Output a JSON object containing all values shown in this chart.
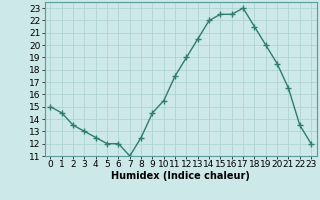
{
  "x": [
    0,
    1,
    2,
    3,
    4,
    5,
    6,
    7,
    8,
    9,
    10,
    11,
    12,
    13,
    14,
    15,
    16,
    17,
    18,
    19,
    20,
    21,
    22,
    23
  ],
  "y": [
    15,
    14.5,
    13.5,
    13,
    12.5,
    12,
    12,
    11,
    12.5,
    14.5,
    15.5,
    17.5,
    19,
    20.5,
    22,
    22.5,
    22.5,
    23,
    21.5,
    20,
    18.5,
    16.5,
    13.5,
    12
  ],
  "line_color": "#2e7d6e",
  "marker": "+",
  "bg_color": "#cce8e8",
  "grid_color": "#aacfcf",
  "xlabel": "Humidex (Indice chaleur)",
  "ylim": [
    11,
    23.5
  ],
  "xlim": [
    -0.5,
    23.5
  ],
  "yticks": [
    11,
    12,
    13,
    14,
    15,
    16,
    17,
    18,
    19,
    20,
    21,
    22,
    23
  ],
  "xticks": [
    0,
    1,
    2,
    3,
    4,
    5,
    6,
    7,
    8,
    9,
    10,
    11,
    12,
    13,
    14,
    15,
    16,
    17,
    18,
    19,
    20,
    21,
    22,
    23
  ],
  "xlabel_fontsize": 7,
  "tick_fontsize": 6.5,
  "line_width": 1.0,
  "marker_size": 4
}
